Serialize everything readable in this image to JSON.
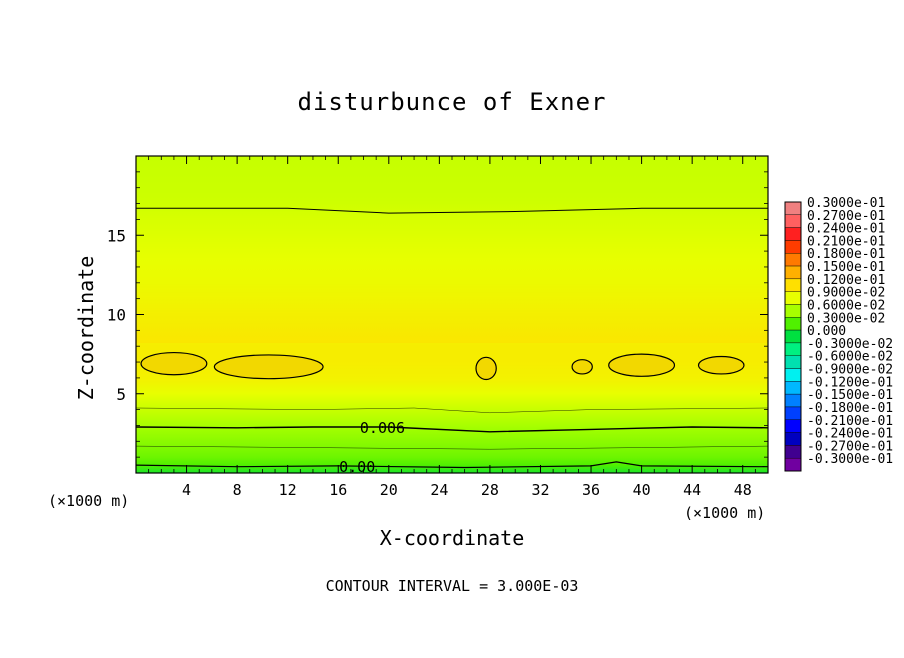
{
  "chart_data": {
    "type": "heatmap",
    "title": "disturbunce of Exner",
    "xlabel": "X-coordinate",
    "ylabel": "Z-coordinate",
    "x_unit": "(×1000 m)",
    "contour_interval_text": "CONTOUR INTERVAL = 3.000E-03",
    "xlim": [
      0,
      50
    ],
    "ylim": [
      0,
      20
    ],
    "xticks": [
      4,
      8,
      12,
      16,
      20,
      24,
      28,
      32,
      36,
      40,
      44,
      48
    ],
    "yticks": [
      5,
      10,
      15
    ],
    "contour_labels": [
      "0.006",
      "0.00"
    ],
    "colorbar": {
      "labels": [
        "0.3000e-01",
        "0.2700e-01",
        "0.2400e-01",
        "0.2100e-01",
        "0.1800e-01",
        "0.1500e-01",
        "0.1200e-01",
        "0.9000e-02",
        "0.6000e-02",
        "0.3000e-02",
        "0.000",
        "-0.3000e-02",
        "-0.6000e-02",
        "-0.9000e-02",
        "-0.1200e-01",
        "-0.1500e-01",
        "-0.1800e-01",
        "-0.2100e-01",
        "-0.2400e-01",
        "-0.2700e-01",
        "-0.3000e-01"
      ],
      "colors": [
        "#f08080",
        "#ff6060",
        "#ff2020",
        "#ff3c00",
        "#ff7a00",
        "#ffb000",
        "#ffe000",
        "#e8ff00",
        "#a8ff00",
        "#50f000",
        "#00e040",
        "#00f080",
        "#00e0b0",
        "#00f0f0",
        "#00b8ff",
        "#0080ff",
        "#0040ff",
        "#0000ff",
        "#0000c0",
        "#400090",
        "#7000a0"
      ]
    },
    "field_profile_z": [
      0,
      0.5,
      1,
      2,
      3,
      4,
      5,
      6,
      7,
      8,
      10,
      12,
      14,
      16,
      17,
      18,
      20
    ],
    "field_profile_value": [
      0.001,
      0.003,
      0.004,
      0.005,
      0.006,
      0.0075,
      0.009,
      0.0105,
      0.0115,
      0.0115,
      0.0105,
      0.0095,
      0.0088,
      0.0082,
      0.0078,
      0.0076,
      0.0074
    ]
  }
}
